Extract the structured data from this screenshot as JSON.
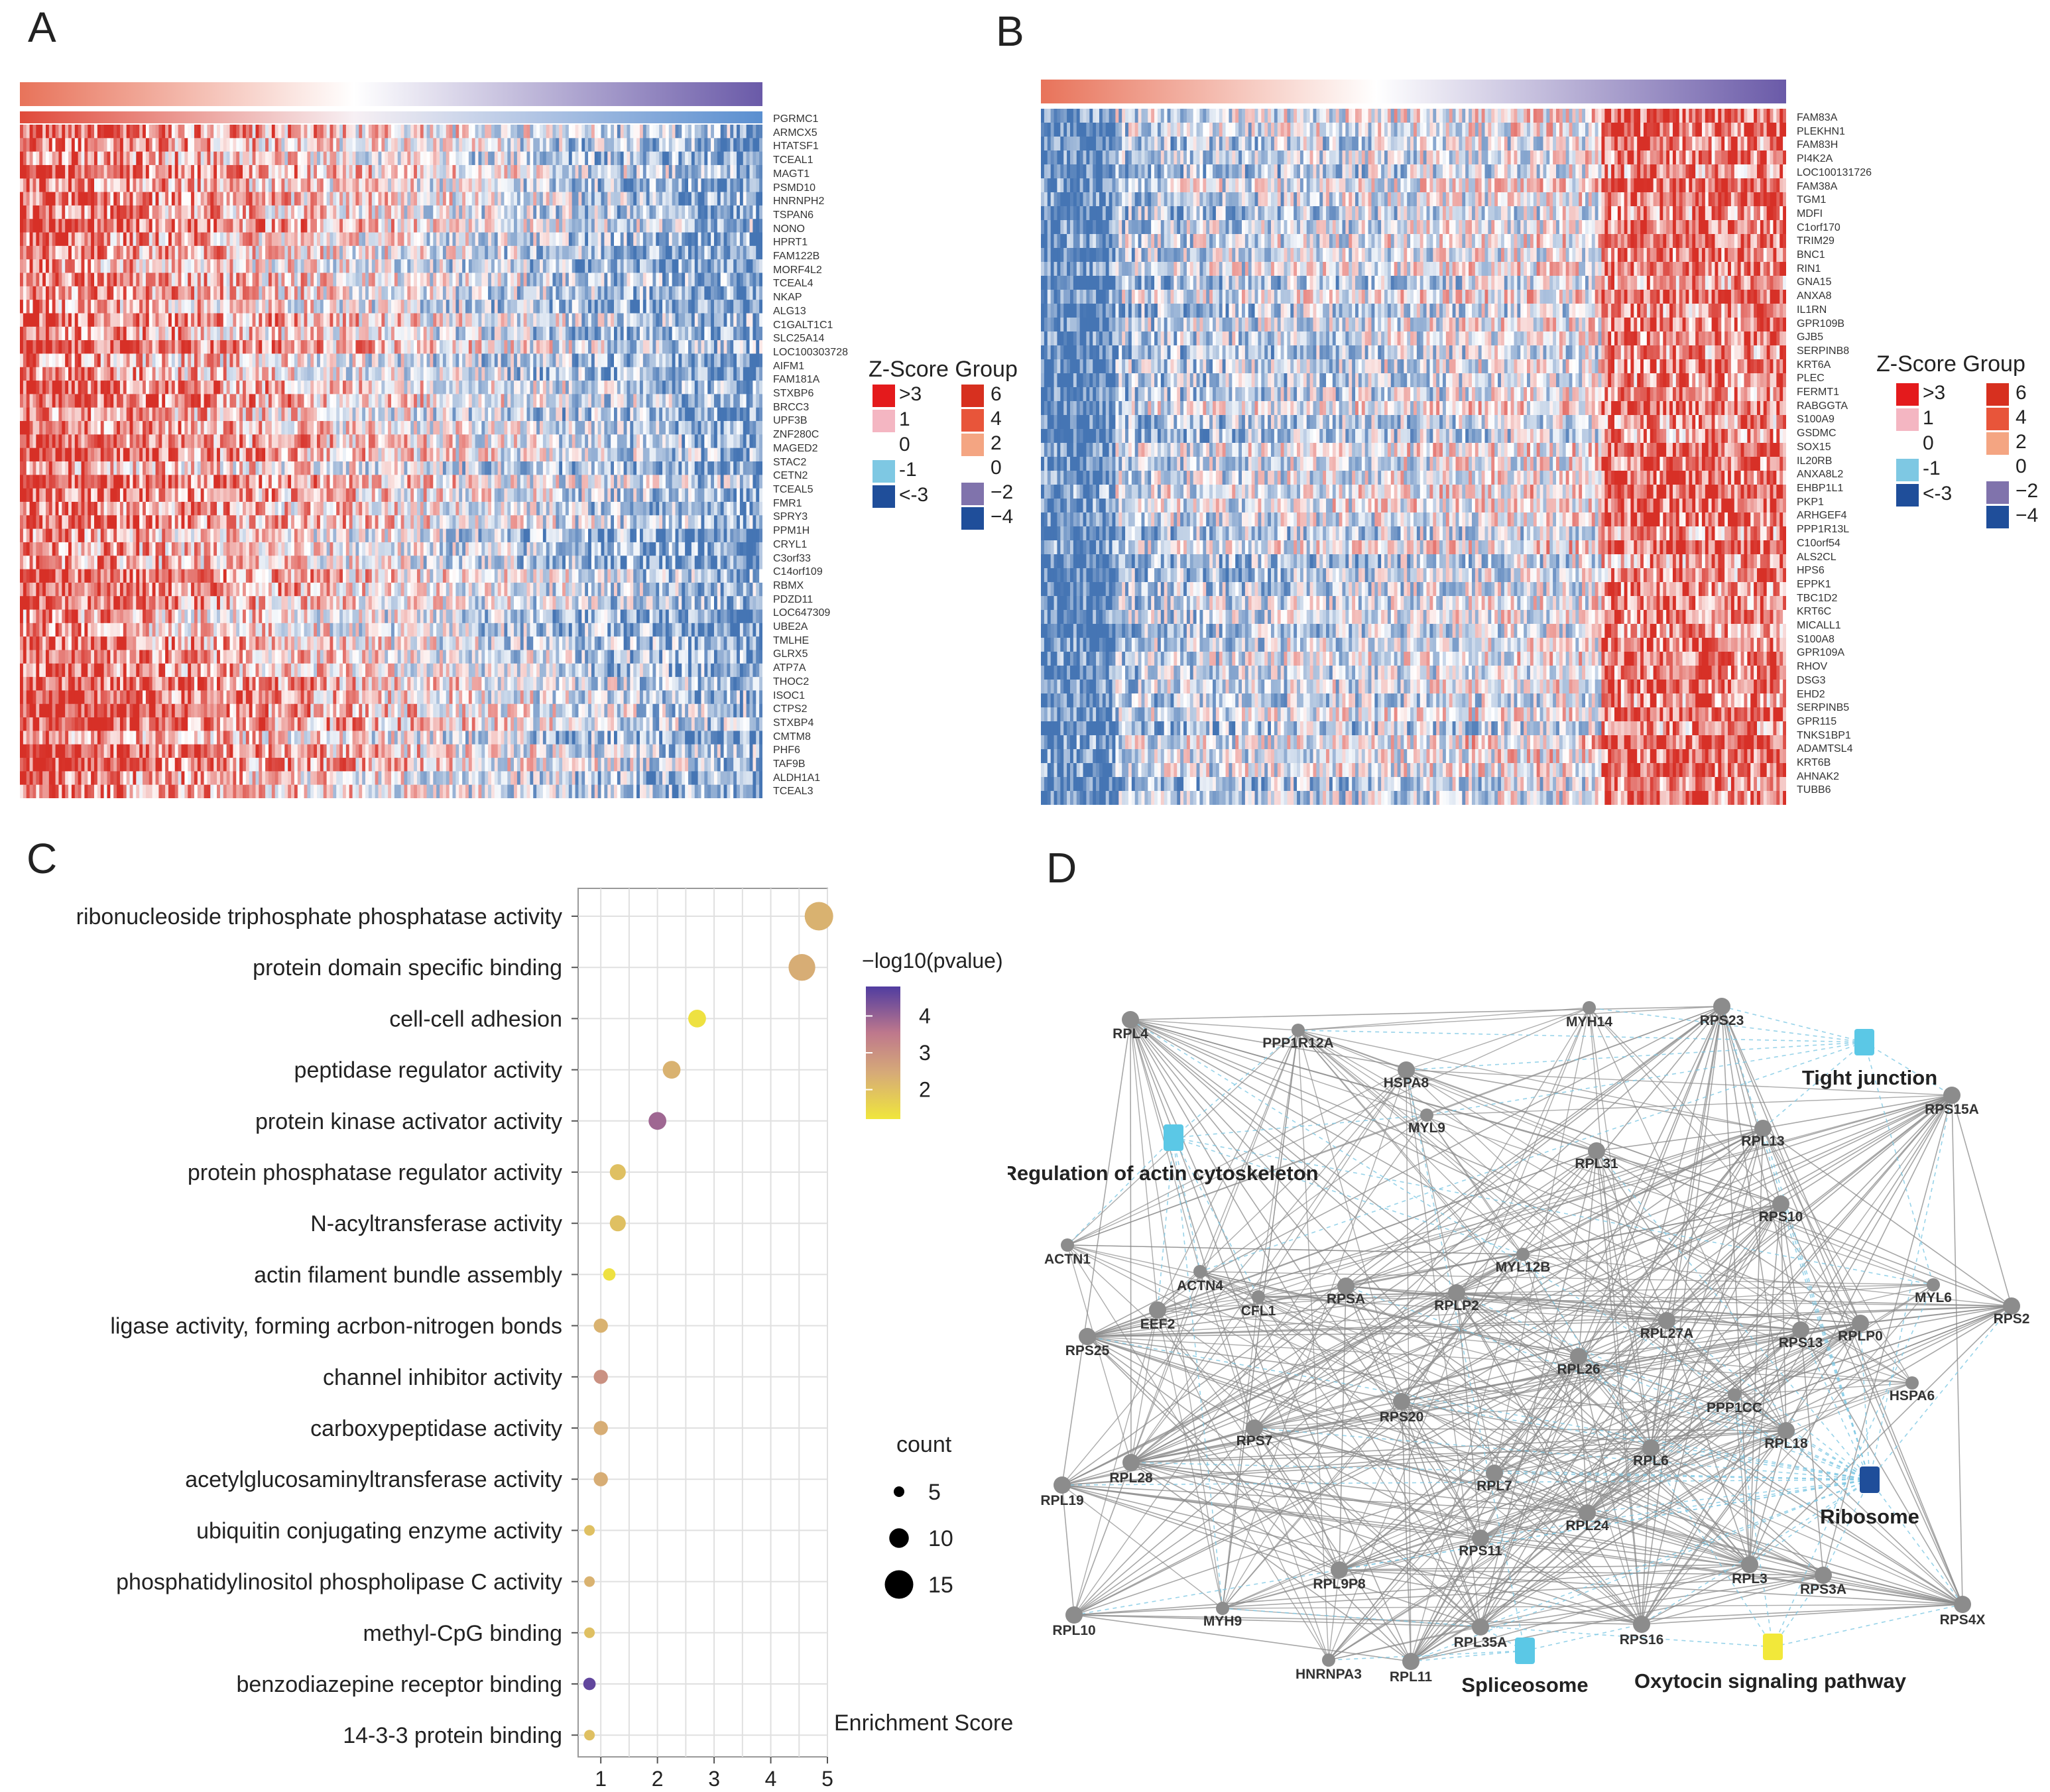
{
  "panels": {
    "a": "A",
    "b": "B",
    "c": "C",
    "d": "D"
  },
  "heatmap_a": {
    "genes": [
      "PGRMC1",
      "ARMCX5",
      "HTATSF1",
      "TCEAL1",
      "MAGT1",
      "PSMD10",
      "HNRNPH2",
      "TSPAN6",
      "NONO",
      "HPRT1",
      "FAM122B",
      "MORF4L2",
      "TCEAL4",
      "NKAP",
      "ALG13",
      "C1GALT1C1",
      "SLC25A14",
      "LOC100303728",
      "AIFM1",
      "FAM181A",
      "STXBP6",
      "BRCC3",
      "UPF3B",
      "ZNF280C",
      "MAGED2",
      "STAC2",
      "CETN2",
      "TCEAL5",
      "FMR1",
      "SPRY3",
      "PPM1H",
      "CRYL1",
      "C3orf33",
      "C14orf109",
      "RBMX",
      "PDZD11",
      "LOC647309",
      "UBE2A",
      "TMLHE",
      "GLRX5",
      "ATP7A",
      "THOC2",
      "ISOC1",
      "CTPS2",
      "STXBP4",
      "CMTM8",
      "PHF6",
      "TAF9B",
      "ALDH1A1",
      "TCEAL3"
    ]
  },
  "heatmap_b": {
    "genes": [
      "FAM83A",
      "PLEKHN1",
      "FAM83H",
      "PI4K2A",
      "LOC100131726",
      "FAM38A",
      "TGM1",
      "MDFI",
      "C1orf170",
      "TRIM29",
      "BNC1",
      "RIN1",
      "GNA15",
      "ANXA8",
      "IL1RN",
      "GPR109B",
      "GJB5",
      "SERPINB8",
      "KRT6A",
      "PLEC",
      "FERMT1",
      "RABGGTA",
      "S100A9",
      "GSDMC",
      "SOX15",
      "IL20RB",
      "ANXA8L2",
      "EHBP1L1",
      "PKP1",
      "ARHGEF4",
      "PPP1R13L",
      "C10orf54",
      "ALS2CL",
      "HPS6",
      "EPPK1",
      "TBC1D2",
      "KRT6C",
      "MICALL1",
      "S100A8",
      "GPR109A",
      "RHOV",
      "DSG3",
      "EHD2",
      "SERPINB5",
      "GPR115",
      "TNKS1BP1",
      "ADAMTSL4",
      "KRT6B",
      "AHNAK2",
      "TUBB6"
    ]
  },
  "heat_legend": {
    "title": "Z-Score Group",
    "zscore_labels": [
      ">3",
      "1",
      "0",
      "-1",
      "<-3"
    ],
    "zscore_colors": [
      "#e41a1c",
      "#f4b6c2",
      "#ffffff",
      "#7ec8e3",
      "#1f4e9a"
    ],
    "group_labels": [
      "6",
      "4",
      "2",
      "0",
      "−2",
      "−4"
    ],
    "group_colors": [
      "#d7301f",
      "#e8553a",
      "#f4a582",
      "#ffffff",
      "#8073ac",
      "#1f4e9a"
    ]
  },
  "colors": {
    "heat_high": "#d73027",
    "heat_low": "#4575b4",
    "net_edge": "#8a8a8a",
    "net_edge_dash": "#7ec8e3",
    "node": "#8c8c8c",
    "pathway_cyan": "#5bc8e6",
    "pathway_blue": "#1f4e9a",
    "pathway_yellow": "#f2e83a"
  },
  "chart_data": {
    "type": "scatter",
    "title": "",
    "xlabel": "Enrichment Score",
    "ylabel": "",
    "xlim": [
      0.6,
      5
    ],
    "x_ticks": [
      "1",
      "2",
      "3",
      "4",
      "5"
    ],
    "categories": [
      "ribonucleoside triphosphate phosphatase activity",
      "protein domain specific binding",
      "cell-cell adhesion",
      "peptidase regulator activity",
      "protein kinase activator activity",
      "protein phosphatase regulator activity",
      "N-acyltransferase activity",
      "actin filament bundle assembly",
      "ligase activity, forming acrbon-nitrogen bonds",
      "channel inhibitor activity",
      "carboxypeptidase activity",
      "acetylglucosaminyltransferase activity",
      "ubiquitin conjugating enzyme activity",
      "phosphatidylinositol phospholipase C activity",
      "methyl-CpG binding",
      "benzodiazepine receptor binding",
      "14-3-3 protein binding"
    ],
    "enrichment": [
      4.85,
      4.55,
      2.7,
      2.25,
      2.0,
      1.3,
      1.3,
      1.15,
      1.0,
      1.0,
      1.0,
      1.0,
      0.8,
      0.8,
      0.8,
      0.8,
      0.8
    ],
    "neg_log10_pvalue": [
      2.3,
      2.4,
      1.3,
      2.3,
      3.9,
      2.0,
      2.0,
      1.3,
      2.3,
      3.0,
      2.4,
      2.4,
      2.0,
      2.3,
      2.0,
      4.6,
      2.0
    ],
    "count": [
      15,
      14,
      9,
      9,
      9,
      8,
      8,
      6,
      7,
      7,
      7,
      7,
      5,
      5,
      5,
      6,
      5
    ],
    "color_legend": {
      "title": "−log10(pvalue)",
      "ticks": [
        "4",
        "3",
        "2"
      ],
      "range": [
        1.2,
        4.8
      ]
    },
    "size_legend": {
      "title": "count",
      "ticks": [
        "5",
        "10",
        "15"
      ]
    }
  },
  "network": {
    "nodes": [
      "RPL4",
      "PPP1R12A",
      "MYH14",
      "RPS23",
      "HSPA8",
      "MYL9",
      "RPL13",
      "RPS15A",
      "RPL31",
      "RPS10",
      "ACTN1",
      "ACTN4",
      "CFL1",
      "RPSA",
      "MYL12B",
      "RPLP2",
      "RPL27A",
      "RPS13",
      "RPLP0",
      "MYL6",
      "RPS2",
      "EEF2",
      "RPS25",
      "RPL26",
      "RPS20",
      "PPP1CC",
      "HSPA6",
      "RPS7",
      "RPL18",
      "RPL28",
      "RPL7",
      "RPL6",
      "RPL19",
      "RPL24",
      "RPS11",
      "RPL9P8",
      "RPL3",
      "RPS3A",
      "RPL10",
      "MYH9",
      "RPL35A",
      "RPS16",
      "RPS4X",
      "HNRNPA3",
      "RPL11"
    ],
    "pathways": [
      "Tight junction",
      "Regulation of actin cytoskeleton",
      "Ribosome",
      "Spliceosome",
      "Oxytocin signaling pathway"
    ]
  }
}
